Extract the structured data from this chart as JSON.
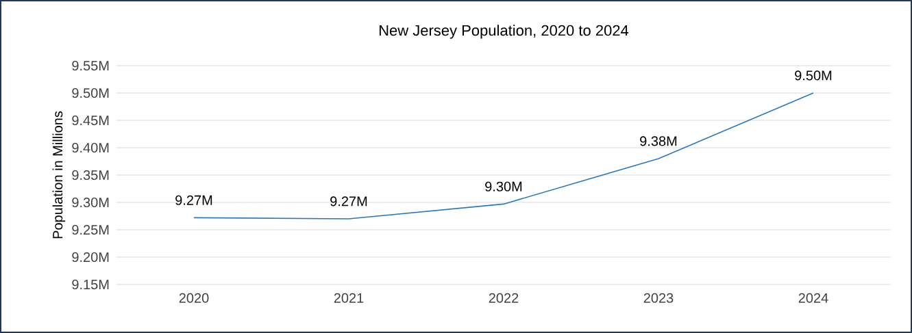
{
  "chart_data": {
    "type": "line",
    "title": "New Jersey Population, 2020 to 2024",
    "ylabel": "Population in Millions",
    "categories": [
      "2020",
      "2021",
      "2022",
      "2023",
      "2024"
    ],
    "values": [
      9.272,
      9.27,
      9.297,
      9.38,
      9.5
    ],
    "value_labels": [
      "9.27M",
      "9.27M",
      "9.30M",
      "9.38M",
      "9.50M"
    ],
    "color": "#2878bd",
    "ylim": [
      9.15,
      9.55
    ],
    "yticks": [
      {
        "value": 9.15,
        "label": "9.15M"
      },
      {
        "value": 9.2,
        "label": "9.20M"
      },
      {
        "value": 9.25,
        "label": "9.25M"
      },
      {
        "value": 9.3,
        "label": "9.30M"
      },
      {
        "value": 9.35,
        "label": "9.35M"
      },
      {
        "value": 9.4,
        "label": "9.40M"
      },
      {
        "value": 9.45,
        "label": "9.45M"
      },
      {
        "value": 9.5,
        "label": "9.50M"
      },
      {
        "value": 9.55,
        "label": "9.55M"
      }
    ],
    "grid": "y",
    "marker": "none"
  }
}
